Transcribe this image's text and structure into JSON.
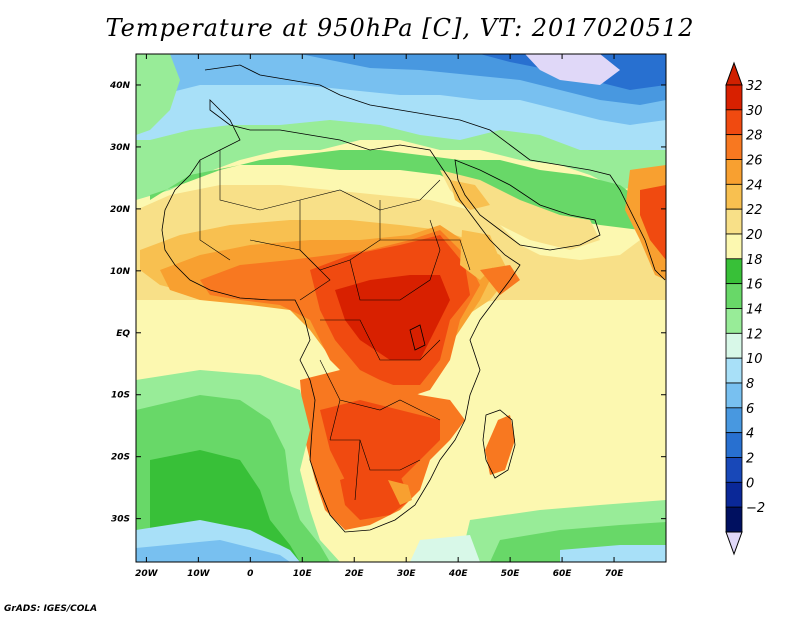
{
  "title": "Temperature at 950hPa [C], VT: 2017020512",
  "credit": "GrADS: IGES/COLA",
  "map": {
    "lon_range": [
      -22,
      80
    ],
    "lat_range": [
      -37,
      45
    ],
    "lon_ticks": [
      {
        "value": -20,
        "label": "20W"
      },
      {
        "value": -10,
        "label": "10W"
      },
      {
        "value": 0,
        "label": "0"
      },
      {
        "value": 10,
        "label": "10E"
      },
      {
        "value": 20,
        "label": "20E"
      },
      {
        "value": 30,
        "label": "30E"
      },
      {
        "value": 40,
        "label": "40E"
      },
      {
        "value": 50,
        "label": "50E"
      },
      {
        "value": 60,
        "label": "60E"
      },
      {
        "value": 70,
        "label": "70E"
      }
    ],
    "lat_ticks": [
      {
        "value": 40,
        "label": "40N"
      },
      {
        "value": 30,
        "label": "30N"
      },
      {
        "value": 20,
        "label": "20N"
      },
      {
        "value": 10,
        "label": "10N"
      },
      {
        "value": 0,
        "label": "EQ"
      },
      {
        "value": -10,
        "label": "10S"
      },
      {
        "value": -20,
        "label": "20S"
      },
      {
        "value": -30,
        "label": "30S"
      }
    ]
  },
  "colorbar": {
    "labels": [
      "32",
      "30",
      "28",
      "26",
      "24",
      "22",
      "20",
      "18",
      "16",
      "14",
      "12",
      "10",
      "8",
      "6",
      "4",
      "2",
      "0",
      "−2"
    ],
    "colors": [
      "#d82000",
      "#f04a10",
      "#f87820",
      "#f8a030",
      "#f8c050",
      "#f8e088",
      "#fcf8b0",
      "#38c038",
      "#68d868",
      "#98ec98",
      "#d8f8e8",
      "#a8e0f8",
      "#78c0f0",
      "#4898e0",
      "#2870d0",
      "#1848b8",
      "#0a2898",
      "#001060"
    ],
    "top_color": "#d02000",
    "bottom_color": "#e0d8f8"
  }
}
